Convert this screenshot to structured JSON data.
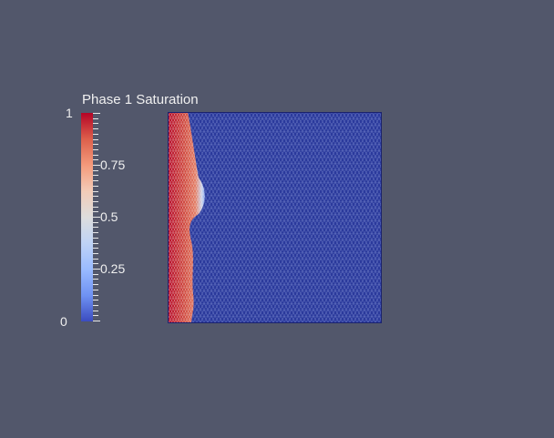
{
  "legend": {
    "title": "Phase 1 Saturation",
    "range_max": "1",
    "range_min": "0",
    "labels": [
      "0.75",
      "0.5",
      "0.25"
    ],
    "colormap": [
      "#b40426",
      "#dd5f4b",
      "#f49a7b",
      "#f2cbb7",
      "#dddddd",
      "#bfd3f6",
      "#9abbff",
      "#6f92f3",
      "#3b4cc0"
    ]
  },
  "colors": {
    "background": "#52576b",
    "domain_fill": "#2b3a9c",
    "mesh_edges": "#6a78c4"
  }
}
